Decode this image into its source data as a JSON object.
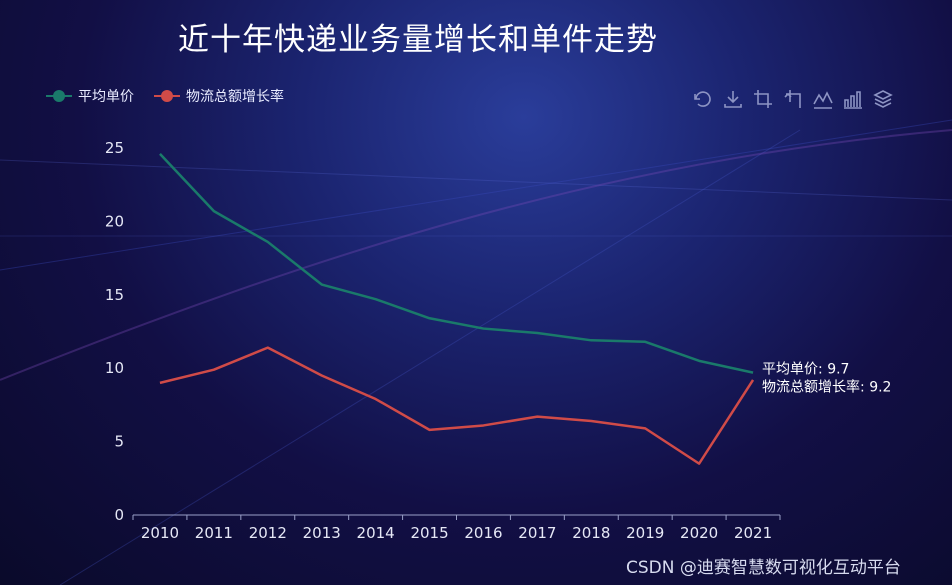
{
  "title": "近十年快递业务量增长和单件走势",
  "legend": [
    {
      "name": "平均单价",
      "color": "#1a7a6a"
    },
    {
      "name": "物流总额增长率",
      "color": "#d04b48"
    }
  ],
  "toolbox": [
    "restore-icon",
    "download-icon",
    "crop-icon",
    "crop-back-icon",
    "line-chart-icon",
    "bar-chart-icon",
    "stack-icon"
  ],
  "tooltip": {
    "line1": "平均单价: 9.7",
    "line2": "物流总额增长率: 9.2"
  },
  "watermark": "CSDN @迪赛智慧数可视化互动平台",
  "chart_data": {
    "type": "line",
    "categories": [
      "2010",
      "2011",
      "2012",
      "2013",
      "2014",
      "2015",
      "2016",
      "2017",
      "2018",
      "2019",
      "2020",
      "2021"
    ],
    "series": [
      {
        "name": "平均单价",
        "color": "#1a7a6a",
        "values": [
          24.6,
          20.7,
          18.6,
          15.7,
          14.7,
          13.4,
          12.7,
          12.4,
          11.9,
          11.8,
          10.5,
          9.7
        ]
      },
      {
        "name": "物流总额增长率",
        "color": "#d04b48",
        "values": [
          9.0,
          9.9,
          11.4,
          9.5,
          7.9,
          5.8,
          6.1,
          6.7,
          6.4,
          5.9,
          3.5,
          9.2
        ]
      }
    ],
    "yticks": [
      0,
      5,
      10,
      15,
      20,
      25
    ],
    "ylim": [
      0,
      25
    ],
    "grid": false
  }
}
